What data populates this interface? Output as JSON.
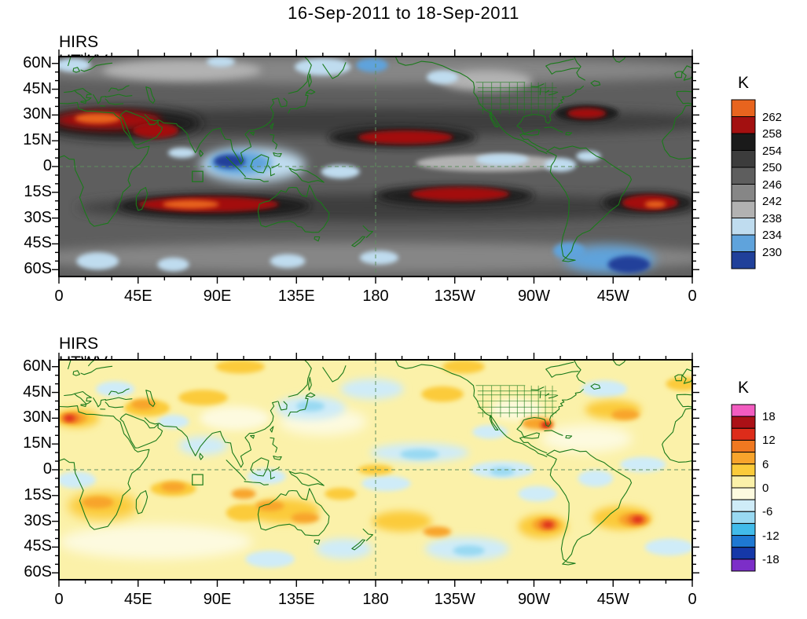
{
  "header": {
    "title": "16-Sep-2011 to 18-Sep-2011"
  },
  "axes": {
    "lat_tick_labels": [
      "60N",
      "45N",
      "30N",
      "15N",
      "0",
      "15S",
      "30S",
      "45S",
      "60S"
    ],
    "lon_tick_labels": [
      "0",
      "45E",
      "90E",
      "135E",
      "180",
      "135W",
      "90W",
      "45W",
      "0"
    ]
  },
  "chart_data": [
    {
      "id": "totals",
      "type": "heatmap",
      "title": "HIRS UTWV Totals",
      "unit": "K",
      "projection": "global lat-lon",
      "lon_range": [
        0,
        360
      ],
      "lat_range": [
        -64,
        64
      ],
      "lat_tick_labels": [
        "60N",
        "45N",
        "30N",
        "15N",
        "0",
        "15S",
        "30S",
        "45S",
        "60S"
      ],
      "lon_tick_labels": [
        "0",
        "45E",
        "90E",
        "135E",
        "180",
        "135W",
        "90W",
        "45W",
        "0"
      ],
      "colorbar": {
        "unit": "K",
        "position": "right",
        "colors": [
          "#E8641E",
          "#A31010",
          "#1A1A1A",
          "#3C3C3C",
          "#5E5E5E",
          "#868686",
          "#B2B2B2",
          "#BFDCEF",
          "#5FA3DC",
          "#20409A"
        ],
        "boundaries": [
          262,
          258,
          254,
          250,
          246,
          242,
          238,
          234,
          230
        ],
        "labels": [
          {
            "boundary": 0,
            "text": "262"
          },
          {
            "boundary": 1,
            "text": "258"
          },
          {
            "boundary": 2,
            "text": "254"
          },
          {
            "boundary": 3,
            "text": "250"
          },
          {
            "boundary": 4,
            "text": "246"
          },
          {
            "boundary": 5,
            "text": "242"
          },
          {
            "boundary": 6,
            "text": "238"
          },
          {
            "boundary": 7,
            "text": "234"
          },
          {
            "boundary": 8,
            "text": "230"
          }
        ]
      },
      "background_value": 248,
      "features": [
        {
          "lon": 180,
          "lat": 56,
          "rlon": 200,
          "rlat": 8,
          "value": 244
        },
        {
          "lon": 180,
          "lat": -53,
          "rlon": 200,
          "rlat": 9,
          "value": 244
        },
        {
          "lon": 70,
          "lat": 56,
          "rlon": 45,
          "rlat": 6,
          "value": 242
        },
        {
          "lon": 243,
          "lat": 50,
          "rlon": 26,
          "rlat": 6,
          "value": 241
        },
        {
          "lon": 180,
          "lat": 26,
          "rlon": 200,
          "rlat": 8,
          "value": 252
        },
        {
          "lon": 190,
          "lat": -24,
          "rlon": 180,
          "rlat": 8,
          "value": 252
        },
        {
          "lon": 35,
          "lat": 25,
          "rlon": 46,
          "rlat": 9,
          "value": 255
        },
        {
          "lon": 195,
          "lat": 17,
          "rlon": 42,
          "rlat": 6,
          "value": 255
        },
        {
          "lon": 88,
          "lat": -23,
          "rlon": 55,
          "rlat": 7,
          "value": 255
        },
        {
          "lon": 225,
          "lat": -17,
          "rlon": 45,
          "rlat": 6,
          "value": 255
        },
        {
          "lon": 335,
          "lat": -21,
          "rlon": 26,
          "rlat": 6,
          "value": 255
        },
        {
          "lon": 300,
          "lat": 31,
          "rlon": 18,
          "rlat": 5,
          "value": 255
        },
        {
          "lon": 28,
          "lat": 27,
          "rlon": 30,
          "rlat": 5.5,
          "value": 260
        },
        {
          "lon": 55,
          "lat": 21,
          "rlon": 13,
          "rlat": 4.5,
          "value": 260
        },
        {
          "lon": 197,
          "lat": 17,
          "rlon": 27,
          "rlat": 4,
          "value": 260
        },
        {
          "lon": 85,
          "lat": -22,
          "rlon": 40,
          "rlat": 4.5,
          "value": 260
        },
        {
          "lon": 228,
          "lat": -16,
          "rlon": 28,
          "rlat": 4,
          "value": 260
        },
        {
          "lon": 336,
          "lat": -21,
          "rlon": 16,
          "rlat": 4.5,
          "value": 260
        },
        {
          "lon": 300,
          "lat": 31,
          "rlon": 11,
          "rlat": 3,
          "value": 260
        },
        {
          "lon": 22,
          "lat": 28,
          "rlon": 13,
          "rlat": 3,
          "value": 264
        },
        {
          "lon": 75,
          "lat": -22,
          "rlon": 16,
          "rlat": 2.5,
          "value": 264
        },
        {
          "lon": 339,
          "lat": -22,
          "rlon": 6,
          "rlat": 2,
          "value": 264
        },
        {
          "lon": 245,
          "lat": 2,
          "rlon": 42,
          "rlat": 5,
          "value": 240
        },
        {
          "lon": 110,
          "lat": 1,
          "rlon": 30,
          "rlat": 10,
          "value": 236
        },
        {
          "lon": 103,
          "lat": 2,
          "rlon": 18,
          "rlat": 7,
          "value": 232
        },
        {
          "lon": 97,
          "lat": 3,
          "rlon": 9,
          "rlat": 4,
          "value": 228
        },
        {
          "lon": 70,
          "lat": 8,
          "rlon": 8,
          "rlat": 3,
          "value": 236
        },
        {
          "lon": 160,
          "lat": -3,
          "rlon": 11,
          "rlat": 4,
          "value": 236
        },
        {
          "lon": 252,
          "lat": 4,
          "rlon": 15,
          "rlat": 3.5,
          "value": 236
        },
        {
          "lon": 285,
          "lat": 1,
          "rlon": 9,
          "rlat": 4,
          "value": 236
        },
        {
          "lon": 301,
          "lat": 6,
          "rlon": 7,
          "rlat": 3,
          "value": 236
        },
        {
          "lon": 150,
          "lat": 58,
          "rlon": 16,
          "rlat": 5,
          "value": 236
        },
        {
          "lon": 178,
          "lat": 59,
          "rlon": 9,
          "rlat": 4,
          "value": 232
        },
        {
          "lon": 92,
          "lat": 61,
          "rlon": 8,
          "rlat": 3,
          "value": 236
        },
        {
          "lon": 8,
          "lat": 59,
          "rlon": 10,
          "rlat": 4,
          "value": 236
        },
        {
          "lon": 313,
          "lat": -54,
          "rlon": 26,
          "rlat": 8,
          "value": 232
        },
        {
          "lon": 324,
          "lat": -57,
          "rlon": 12,
          "rlat": 5,
          "value": 228
        },
        {
          "lon": 290,
          "lat": -49,
          "rlon": 9,
          "rlat": 5,
          "value": 234
        },
        {
          "lon": 22,
          "lat": -55,
          "rlon": 12,
          "rlat": 5,
          "value": 236
        },
        {
          "lon": 65,
          "lat": -57,
          "rlon": 9,
          "rlat": 4,
          "value": 236
        },
        {
          "lon": 130,
          "lat": -55,
          "rlon": 10,
          "rlat": 4,
          "value": 236
        },
        {
          "lon": 182,
          "lat": -53,
          "rlon": 11,
          "rlat": 4,
          "value": 236
        },
        {
          "lon": 218,
          "lat": 52,
          "rlon": 9,
          "rlat": 4,
          "value": 236
        }
      ]
    },
    {
      "id": "anomalies",
      "type": "heatmap",
      "title": "HIRS UTWV Anomalies",
      "unit": "K",
      "projection": "global lat-lon",
      "lon_range": [
        0,
        360
      ],
      "lat_range": [
        -64,
        64
      ],
      "lat_tick_labels": [
        "60N",
        "45N",
        "30N",
        "15N",
        "0",
        "15S",
        "30S",
        "45S",
        "60S"
      ],
      "lon_tick_labels": [
        "0",
        "45E",
        "90E",
        "135E",
        "180",
        "135W",
        "90W",
        "45W",
        "0"
      ],
      "colorbar": {
        "unit": "K",
        "position": "right",
        "colors": [
          "#F25CC0",
          "#AB1016",
          "#DD2C1A",
          "#F07820",
          "#F8A42C",
          "#FBCB3A",
          "#FBF1A9",
          "#FDFADF",
          "#CFECF8",
          "#99D9F2",
          "#41BBEA",
          "#1E78D2",
          "#1538A8",
          "#7C2EC8"
        ],
        "boundaries": [
          18,
          15,
          12,
          9,
          6,
          3,
          0,
          -3,
          -6,
          -9,
          -12,
          -15,
          -18
        ],
        "labels": [
          {
            "boundary": 0,
            "text": "18"
          },
          {
            "boundary": 2,
            "text": "12"
          },
          {
            "boundary": 4,
            "text": "6"
          },
          {
            "boundary": 6,
            "text": "0"
          },
          {
            "boundary": 8,
            "text": "-6"
          },
          {
            "boundary": 10,
            "text": "-12"
          },
          {
            "boundary": 12,
            "text": "-18"
          }
        ]
      },
      "background_value": 1,
      "features": [
        {
          "lon": 55,
          "lat": -42,
          "rlon": 55,
          "rlat": 10,
          "value": -1
        },
        {
          "lon": 150,
          "lat": 28,
          "rlon": 25,
          "rlat": 8,
          "value": -1
        },
        {
          "lon": 300,
          "lat": 18,
          "rlon": 26,
          "rlat": 8,
          "value": -1
        },
        {
          "lon": 100,
          "lat": 30,
          "rlon": 20,
          "rlat": 7,
          "value": -1
        },
        {
          "lon": 260,
          "lat": 35,
          "rlon": 15,
          "rlat": 6,
          "value": -1
        },
        {
          "lon": 143,
          "lat": 36,
          "rlon": 20,
          "rlat": 7,
          "value": -4
        },
        {
          "lon": 178,
          "lat": 47,
          "rlon": 18,
          "rlat": 6,
          "value": -4
        },
        {
          "lon": 205,
          "lat": 10,
          "rlon": 28,
          "rlat": 5.5,
          "value": -4
        },
        {
          "lon": 186,
          "lat": -8,
          "rlon": 14,
          "rlat": 4.5,
          "value": -4
        },
        {
          "lon": 252,
          "lat": 0,
          "rlon": 18,
          "rlat": 5,
          "value": -4
        },
        {
          "lon": 272,
          "lat": -14,
          "rlon": 11,
          "rlat": 4.5,
          "value": -4
        },
        {
          "lon": 232,
          "lat": -46,
          "rlon": 24,
          "rlat": 7,
          "value": -4
        },
        {
          "lon": 162,
          "lat": -46,
          "rlon": 16,
          "rlat": 6,
          "value": -4
        },
        {
          "lon": 82,
          "lat": 14,
          "rlon": 14,
          "rlat": 5.5,
          "value": -4
        },
        {
          "lon": 118,
          "lat": -4,
          "rlon": 11,
          "rlat": 4.5,
          "value": -4
        },
        {
          "lon": 10,
          "lat": -6,
          "rlon": 11,
          "rlat": 5,
          "value": -4
        },
        {
          "lon": 332,
          "lat": 3,
          "rlon": 13,
          "rlat": 4.5,
          "value": -4
        },
        {
          "lon": 310,
          "lat": 47,
          "rlon": 13,
          "rlat": 5,
          "value": -4
        },
        {
          "lon": 32,
          "lat": 47,
          "rlon": 11,
          "rlat": 4.5,
          "value": -4
        },
        {
          "lon": 347,
          "lat": -45,
          "rlon": 14,
          "rlat": 5,
          "value": -4
        },
        {
          "lon": 120,
          "lat": -52,
          "rlon": 14,
          "rlat": 5,
          "value": -4
        },
        {
          "lon": 65,
          "lat": 28,
          "rlon": 9,
          "rlat": 4,
          "value": -4
        },
        {
          "lon": 245,
          "lat": 22,
          "rlon": 10,
          "rlat": 4,
          "value": -4
        },
        {
          "lon": 305,
          "lat": -5,
          "rlon": 10,
          "rlat": 5,
          "value": -4
        },
        {
          "lon": 205,
          "lat": 9,
          "rlon": 11,
          "rlat": 3,
          "value": -8
        },
        {
          "lon": 143,
          "lat": 37,
          "rlon": 8,
          "rlat": 3,
          "value": -8
        },
        {
          "lon": 252,
          "lat": -1,
          "rlon": 7,
          "rlat": 2.5,
          "value": -8
        },
        {
          "lon": 233,
          "lat": -47,
          "rlon": 9,
          "rlat": 3,
          "value": -8
        },
        {
          "lon": 25,
          "lat": -21,
          "rlon": 20,
          "rlat": 8,
          "value": 4
        },
        {
          "lon": 128,
          "lat": -24,
          "rlon": 20,
          "rlat": 7,
          "value": 4
        },
        {
          "lon": 105,
          "lat": -25,
          "rlon": 10,
          "rlat": 5,
          "value": 4
        },
        {
          "lon": 195,
          "lat": -30,
          "rlon": 17,
          "rlat": 6,
          "value": 4
        },
        {
          "lon": 320,
          "lat": -28,
          "rlon": 17,
          "rlat": 7,
          "value": 4
        },
        {
          "lon": 275,
          "lat": -33,
          "rlon": 14,
          "rlat": 7,
          "value": 4
        },
        {
          "lon": 315,
          "lat": 35,
          "rlon": 16,
          "rlat": 5.5,
          "value": 4
        },
        {
          "lon": 50,
          "lat": 36,
          "rlon": 13,
          "rlat": 5,
          "value": 4
        },
        {
          "lon": 82,
          "lat": 42,
          "rlon": 14,
          "rlat": 4.5,
          "value": 4
        },
        {
          "lon": 10,
          "lat": 30,
          "rlon": 13,
          "rlat": 5.5,
          "value": 4
        },
        {
          "lon": 218,
          "lat": 44,
          "rlon": 12,
          "rlat": 4.5,
          "value": 4
        },
        {
          "lon": 65,
          "lat": -11,
          "rlon": 13,
          "rlat": 4.5,
          "value": 4
        },
        {
          "lon": 180,
          "lat": 0,
          "rlon": 10,
          "rlat": 3,
          "value": 4
        },
        {
          "lon": 103,
          "lat": 60,
          "rlon": 14,
          "rlat": 4,
          "value": 4
        },
        {
          "lon": 160,
          "lat": -14,
          "rlon": 9,
          "rlat": 3.5,
          "value": 4
        },
        {
          "lon": 230,
          "lat": 60,
          "rlon": 12,
          "rlat": 4,
          "value": 4
        },
        {
          "lon": 355,
          "lat": 50,
          "rlon": 10,
          "rlat": 4,
          "value": 4
        },
        {
          "lon": 272,
          "lat": 27,
          "rlon": 9,
          "rlat": 3.5,
          "value": 8
        },
        {
          "lon": 8,
          "lat": 30,
          "rlon": 8,
          "rlat": 3.5,
          "value": 8
        },
        {
          "lon": 22,
          "lat": -19,
          "rlon": 9,
          "rlat": 3.5,
          "value": 8
        },
        {
          "lon": 120,
          "lat": -21,
          "rlon": 8,
          "rlat": 3,
          "value": 8
        },
        {
          "lon": 140,
          "lat": -28,
          "rlon": 8,
          "rlat": 3,
          "value": 8
        },
        {
          "lon": 105,
          "lat": -14,
          "rlon": 7,
          "rlat": 3,
          "value": 8
        },
        {
          "lon": 65,
          "lat": -10,
          "rlon": 7,
          "rlat": 2.8,
          "value": 8
        },
        {
          "lon": 277,
          "lat": -32,
          "rlon": 8,
          "rlat": 4,
          "value": 8
        },
        {
          "lon": 327,
          "lat": -29,
          "rlon": 9,
          "rlat": 4,
          "value": 8
        },
        {
          "lon": 322,
          "lat": 32,
          "rlon": 8,
          "rlat": 3,
          "value": 8
        },
        {
          "lon": 215,
          "lat": -36,
          "rlon": 8,
          "rlat": 3,
          "value": 8
        },
        {
          "lon": 48,
          "lat": 38,
          "rlon": 7,
          "rlat": 3,
          "value": 8
        },
        {
          "lon": 7,
          "lat": 30,
          "rlon": 5,
          "rlat": 2.5,
          "value": 10.5
        },
        {
          "lon": 277.5,
          "lat": -32,
          "rlon": 5,
          "rlat": 2.8,
          "value": 10.5
        },
        {
          "lon": 328,
          "lat": -29,
          "rlon": 5.5,
          "rlat": 2.8,
          "value": 10.5
        },
        {
          "lon": 277,
          "lat": 26,
          "rlon": 4,
          "rlat": 2.2,
          "value": 10.5
        },
        {
          "lon": 6,
          "lat": 30,
          "rlon": 3,
          "rlat": 1.8,
          "value": 13
        },
        {
          "lon": 278,
          "lat": -32,
          "rlon": 3,
          "rlat": 1.8,
          "value": 13
        },
        {
          "lon": 329,
          "lat": -29,
          "rlon": 3,
          "rlat": 1.8,
          "value": 13
        },
        {
          "lon": 277,
          "lat": 26,
          "rlon": 2.5,
          "rlat": 1.4,
          "value": 13
        },
        {
          "lon": 277,
          "lat": 26,
          "rlon": 1.5,
          "rlat": 0.9,
          "value": 16
        }
      ]
    }
  ]
}
